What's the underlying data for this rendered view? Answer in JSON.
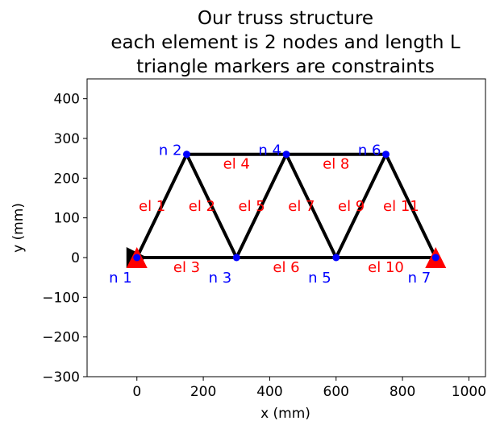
{
  "chart_data": {
    "type": "line",
    "title": [
      "Our truss structure",
      "each element is 2 nodes and length L",
      "triangle markers are constraints"
    ],
    "xlabel": "x (mm)",
    "ylabel": "y (mm)",
    "xlim": [
      -150,
      1050
    ],
    "ylim": [
      -300,
      450
    ],
    "xticks": [
      0,
      200,
      400,
      600,
      800,
      1000
    ],
    "xtick_labels": [
      "0",
      "200",
      "400",
      "600",
      "800",
      "1000"
    ],
    "yticks": [
      -300,
      -200,
      -100,
      0,
      100,
      200,
      300,
      400
    ],
    "ytick_labels": [
      "−300",
      "−200",
      "−100",
      "0",
      "100",
      "200",
      "300",
      "400"
    ],
    "grid": false,
    "nodes": [
      {
        "label": "n 1",
        "x": 0,
        "y": 0
      },
      {
        "label": "n 2",
        "x": 150,
        "y": 260
      },
      {
        "label": "n 3",
        "x": 300,
        "y": 0
      },
      {
        "label": "n 4",
        "x": 450,
        "y": 260
      },
      {
        "label": "n 5",
        "x": 600,
        "y": 0
      },
      {
        "label": "n 6",
        "x": 750,
        "y": 260
      },
      {
        "label": "n 7",
        "x": 900,
        "y": 0
      }
    ],
    "elements": [
      {
        "label": "el 1",
        "from": 1,
        "to": 2
      },
      {
        "label": "el 2",
        "from": 2,
        "to": 3
      },
      {
        "label": "el 3",
        "from": 1,
        "to": 3
      },
      {
        "label": "el 4",
        "from": 2,
        "to": 4
      },
      {
        "label": "el 5",
        "from": 3,
        "to": 4
      },
      {
        "label": "el 6",
        "from": 3,
        "to": 5
      },
      {
        "label": "el 7",
        "from": 4,
        "to": 5
      },
      {
        "label": "el 8",
        "from": 4,
        "to": 6
      },
      {
        "label": "el 9",
        "from": 5,
        "to": 6
      },
      {
        "label": "el 10",
        "from": 5,
        "to": 7
      },
      {
        "label": "el 11",
        "from": 6,
        "to": 7
      }
    ],
    "constraints": [
      {
        "node": 1,
        "direction": "x",
        "color": "#000000"
      },
      {
        "node": 1,
        "direction": "y",
        "color": "#ff0000"
      },
      {
        "node": 7,
        "direction": "y",
        "color": "#ff0000"
      }
    ],
    "colors": {
      "element_line": "#000000",
      "node_marker": "#0000ff",
      "node_label": "#0000ff",
      "element_label": "#ff0000"
    }
  }
}
